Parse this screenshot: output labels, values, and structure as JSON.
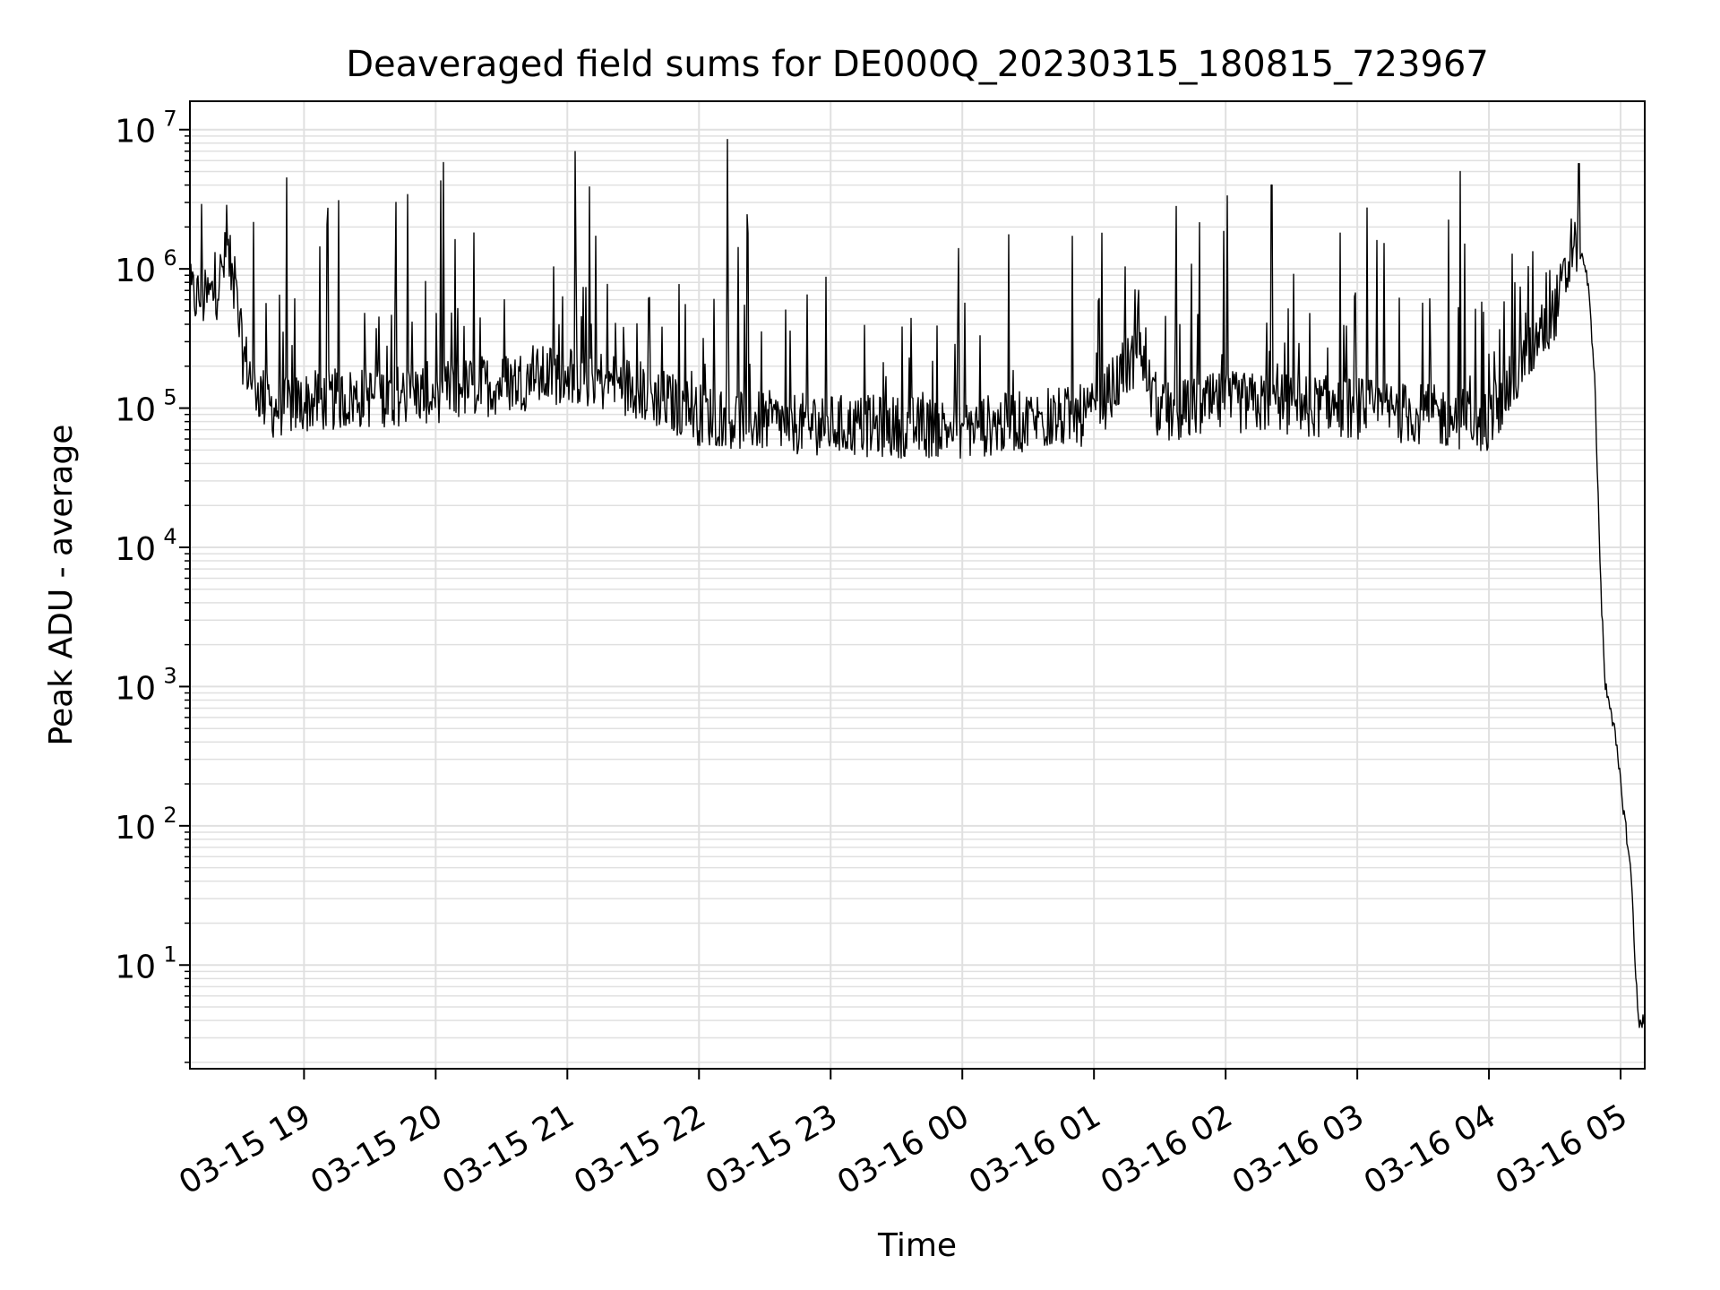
{
  "chart_data": {
    "type": "line",
    "title": "Deaveraged field sums for DE000Q_20230315_180815_723967",
    "xlabel": "Time",
    "ylabel": "Peak ADU - average",
    "yscale": "log",
    "ylim": [
      1.8,
      16000000
    ],
    "xlim": [
      "2023-03-15 18:08",
      "2023-03-16 05:11"
    ],
    "x_tick_labels": [
      "03-15 19",
      "03-15 20",
      "03-15 21",
      "03-15 22",
      "03-15 23",
      "03-16 00",
      "03-16 01",
      "03-16 02",
      "03-16 03",
      "03-16 04",
      "03-16 05"
    ],
    "y_ticks": [
      10,
      100,
      1000,
      10000,
      100000,
      1000000,
      10000000
    ],
    "y_tick_bases": [
      "10",
      "10",
      "10",
      "10",
      "10",
      "10",
      "10"
    ],
    "y_tick_exponents": [
      "1",
      "2",
      "3",
      "4",
      "5",
      "6",
      "7"
    ],
    "grid": true,
    "line_color": "#000000",
    "grid_color": "#e0e0e0",
    "series": [
      {
        "x": [
          "2023-03-15 18:08",
          "2023-03-15 18:15",
          "2023-03-15 18:20",
          "2023-03-15 18:25",
          "2023-03-15 18:28",
          "2023-03-15 18:32",
          "2023-03-15 18:37",
          "2023-03-15 18:45",
          "2023-03-15 19:00",
          "2023-03-15 19:30",
          "2023-03-15 20:00",
          "2023-03-15 20:30",
          "2023-03-15 21:00",
          "2023-03-15 21:30",
          "2023-03-15 22:00",
          "2023-03-15 22:30",
          "2023-03-15 23:00",
          "2023-03-16 00:00",
          "2023-03-16 00:30",
          "2023-03-16 01:00",
          "2023-03-16 01:20",
          "2023-03-16 01:30",
          "2023-03-16 02:00",
          "2023-03-16 03:00",
          "2023-03-16 04:00",
          "2023-03-16 04:15",
          "2023-03-16 04:30",
          "2023-03-16 04:40",
          "2023-03-16 04:43",
          "2023-03-16 04:45",
          "2023-03-16 04:48",
          "2023-03-16 04:51",
          "2023-03-16 04:53",
          "2023-03-16 04:55",
          "2023-03-16 04:57",
          "2023-03-16 05:00",
          "2023-03-16 05:03",
          "2023-03-16 05:05",
          "2023-03-16 05:07",
          "2023-03-16 05:08",
          "2023-03-16 05:11"
        ],
        "y": [
          650000,
          600000,
          700000,
          1300000,
          800000,
          250000,
          150000,
          100000,
          110000,
          120000,
          130000,
          150000,
          180000,
          140000,
          90000,
          80000,
          75000,
          72000,
          80000,
          90000,
          250000,
          90000,
          110000,
          100000,
          80000,
          200000,
          500000,
          1500000,
          1200000,
          800000,
          200000,
          5000,
          1000,
          800,
          500,
          200,
          80,
          40,
          8,
          4,
          4
        ]
      }
    ],
    "spikes": [
      {
        "x": "2023-03-15 18:52",
        "y": 4500000
      },
      {
        "x": "2023-03-15 19:42",
        "y": 3000000
      },
      {
        "x": "2023-03-15 22:13",
        "y": 8500000
      },
      {
        "x": "2023-03-16 02:21",
        "y": 4000000
      },
      {
        "x": "2023-03-16 03:47",
        "y": 5000000
      },
      {
        "x": "2023-03-16 04:41",
        "y": 5700000
      }
    ]
  }
}
